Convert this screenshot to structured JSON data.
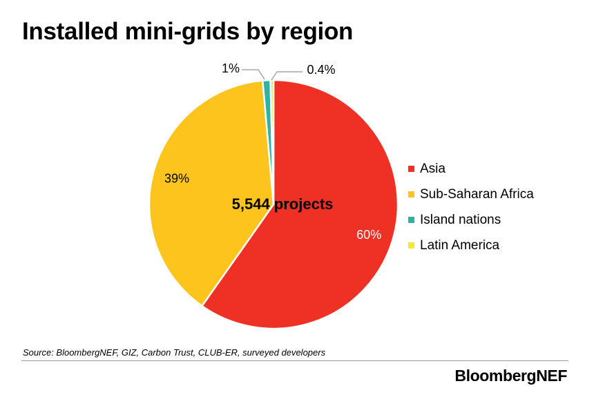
{
  "chart_data": {
    "type": "pie",
    "title": "Installed mini-grids by region",
    "center_label": "5,544 projects",
    "slices": [
      {
        "name": "Asia",
        "value": 60,
        "label": "60%",
        "color": "#ee3124"
      },
      {
        "name": "Sub-Saharan Africa",
        "value": 39,
        "label": "39%",
        "color": "#fcc41c"
      },
      {
        "name": "Island nations",
        "value": 1,
        "label": "1%",
        "color": "#2bb5a0"
      },
      {
        "name": "Latin America",
        "value": 0.4,
        "label": "0.4%",
        "color": "#f6e635"
      }
    ],
    "legend_position": "right"
  },
  "footer": {
    "source": "Source: BloombergNEF, GIZ, Carbon Trust, CLUB-ER, surveyed developers",
    "brand": "BloombergNEF"
  }
}
